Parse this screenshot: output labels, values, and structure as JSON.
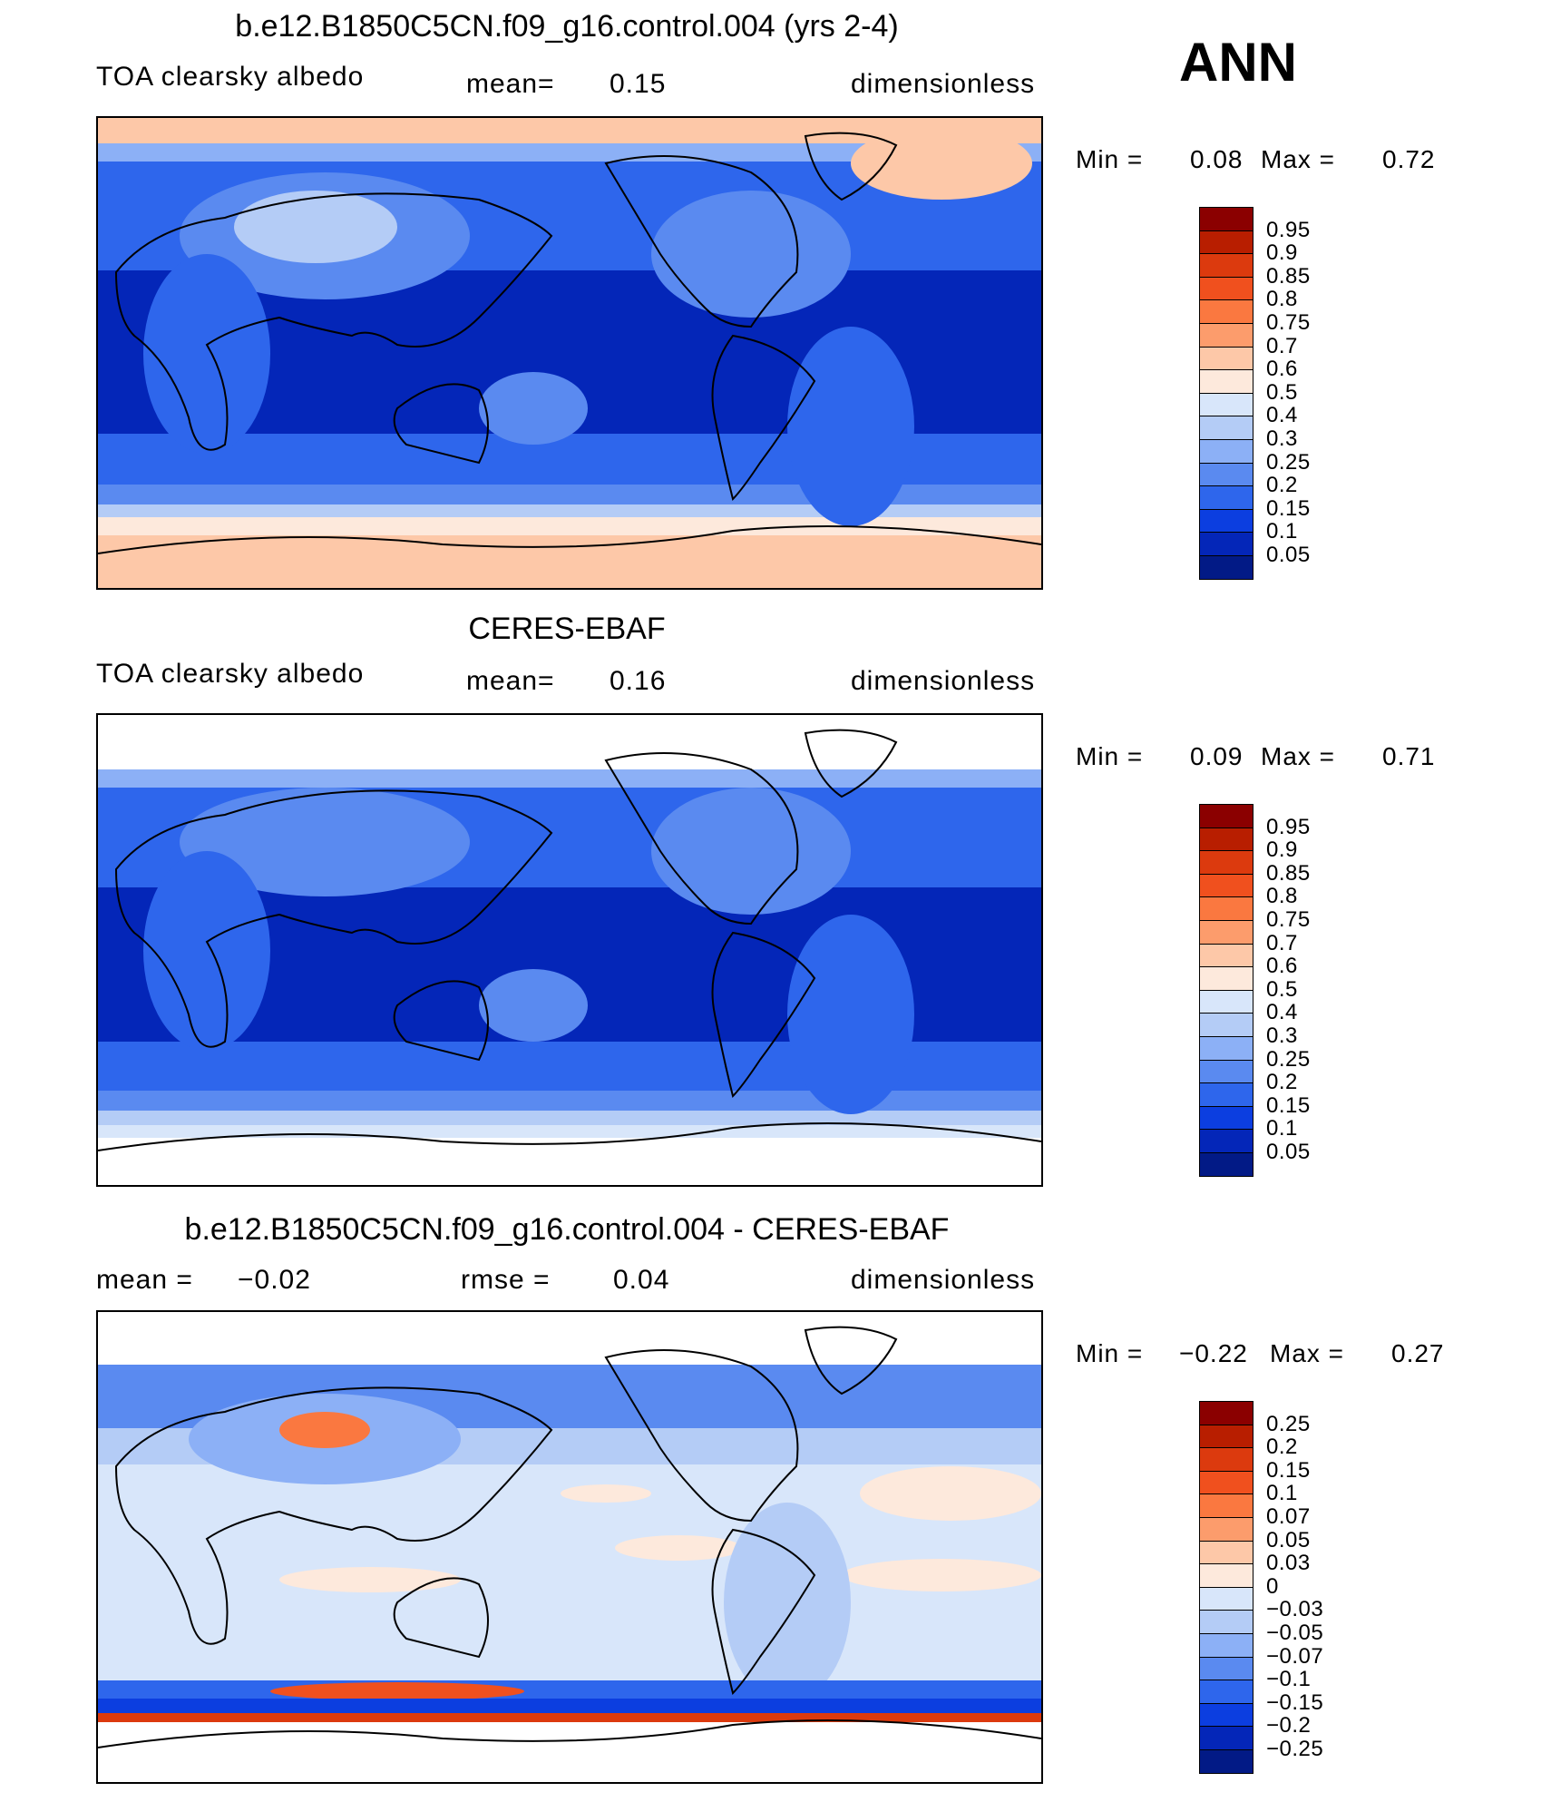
{
  "season": "ANN",
  "panels": [
    {
      "title": "b.e12.B1850C5CN.f09_g16.control.004 (yrs 2-4)",
      "left_label": "TOA clearsky albedo",
      "mid_label": "mean=",
      "mid_value": "0.15",
      "right_label": "dimensionless",
      "min_label": "Min =",
      "min_value": "0.08",
      "max_label": "Max =",
      "max_value": "0.72",
      "colorbar_labels": [
        "0.95",
        "0.9",
        "0.85",
        "0.8",
        "0.75",
        "0.7",
        "0.6",
        "0.5",
        "0.4",
        "0.3",
        "0.25",
        "0.2",
        "0.15",
        "0.1",
        "0.05"
      ],
      "colorbar_colors": [
        "#8b0000",
        "#b81e00",
        "#dc3a0e",
        "#f0501e",
        "#fa7840",
        "#fc9c6c",
        "#fdc8a8",
        "#fde9dc",
        "#d8e6fa",
        "#b4ccf6",
        "#8cb0f6",
        "#5a8af0",
        "#2e66ec",
        "#0c3ee0",
        "#0426b8",
        "#021a86"
      ]
    },
    {
      "title": "CERES-EBAF",
      "left_label": "TOA clearsky albedo",
      "mid_label": "mean=",
      "mid_value": "0.16",
      "right_label": "dimensionless",
      "min_label": "Min =",
      "min_value": "0.09",
      "max_label": "Max =",
      "max_value": "0.71",
      "colorbar_labels": [
        "0.95",
        "0.9",
        "0.85",
        "0.8",
        "0.75",
        "0.7",
        "0.6",
        "0.5",
        "0.4",
        "0.3",
        "0.25",
        "0.2",
        "0.15",
        "0.1",
        "0.05"
      ],
      "colorbar_colors": [
        "#8b0000",
        "#b81e00",
        "#dc3a0e",
        "#f0501e",
        "#fa7840",
        "#fc9c6c",
        "#fdc8a8",
        "#fde9dc",
        "#d8e6fa",
        "#b4ccf6",
        "#8cb0f6",
        "#5a8af0",
        "#2e66ec",
        "#0c3ee0",
        "#0426b8",
        "#021a86"
      ]
    },
    {
      "title": "b.e12.B1850C5CN.f09_g16.control.004 - CERES-EBAF",
      "left_label": "mean =",
      "left_value": "−0.02",
      "mid_label": "rmse =",
      "mid_value": "0.04",
      "right_label": "dimensionless",
      "min_label": "Min =",
      "min_value": "−0.22",
      "max_label": "Max =",
      "max_value": "0.27",
      "colorbar_labels": [
        "0.25",
        "0.2",
        "0.15",
        "0.1",
        "0.07",
        "0.05",
        "0.03",
        "0",
        "−0.03",
        "−0.05",
        "−0.07",
        "−0.1",
        "−0.15",
        "−0.2",
        "−0.25"
      ],
      "colorbar_colors": [
        "#8b0000",
        "#b81e00",
        "#dc3a0e",
        "#f0501e",
        "#fa7840",
        "#fc9c6c",
        "#fdc8a8",
        "#fde9dc",
        "#d8e6fa",
        "#b4ccf6",
        "#8cb0f6",
        "#5a8af0",
        "#2e66ec",
        "#0c3ee0",
        "#0426b8",
        "#021a86"
      ]
    }
  ]
}
